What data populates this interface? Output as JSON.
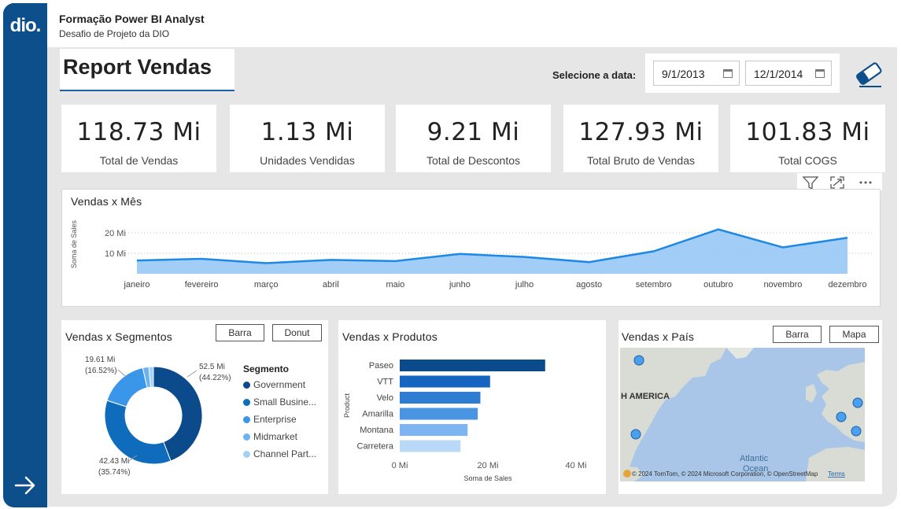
{
  "brand": {
    "logo_text": "dio."
  },
  "header": {
    "title": "Formação Power BI Analyst",
    "subtitle": "Desafio de Projeto da DIO"
  },
  "report": {
    "title": "Report Vendas"
  },
  "date_filter": {
    "label": "Selecione a data:",
    "start": "9/1/2013",
    "end": "12/1/2014"
  },
  "kpis": [
    {
      "value": "118.73 Mi",
      "label": "Total de Vendas"
    },
    {
      "value": "1.13 Mi",
      "label": "Unidades Vendidas"
    },
    {
      "value": "9.21 Mi",
      "label": "Total de Descontos"
    },
    {
      "value": "127.93 Mi",
      "label": "Total Bruto de Vendas"
    },
    {
      "value": "101.83 Mi",
      "label": "Total COGS"
    }
  ],
  "colors": {
    "rail": "#0d4f8b",
    "accent": "#1f5fa8",
    "line": "#1e88e5",
    "area": "#90c4f5"
  },
  "chart_data": [
    {
      "type": "area",
      "title": "Vendas x Mês",
      "ylabel": "Soma de Sales",
      "xlabel": "",
      "categories": [
        "janeiro",
        "fevereiro",
        "março",
        "abril",
        "maio",
        "junho",
        "julho",
        "agosto",
        "setembro",
        "outubro",
        "novembro",
        "dezembro"
      ],
      "values": [
        6.5,
        7.3,
        5.2,
        6.8,
        6.2,
        9.7,
        8.2,
        5.7,
        11.0,
        21.7,
        12.9,
        17.6
      ],
      "yticks": [
        "10 Mi",
        "20 Mi"
      ],
      "ylim": [
        0,
        25
      ]
    },
    {
      "type": "pie",
      "title": "Vendas x Segmentos",
      "legend_title": "Segmento",
      "categories": [
        "Government",
        "Small Business",
        "Enterprise",
        "Midmarket",
        "Channel Partners"
      ],
      "legend_labels": [
        "Government",
        "Small Busine...",
        "Enterprise",
        "Midmarket",
        "Channel Part..."
      ],
      "values": [
        52.5,
        42.43,
        19.61,
        2.4,
        1.79
      ],
      "data_labels": [
        {
          "value": "52.5 Mi",
          "pct": "(44.22%)"
        },
        {
          "value": "42.43 Mi",
          "pct": "(35.74%)"
        },
        {
          "value": "19.61 Mi",
          "pct": "(16.52%)"
        }
      ],
      "colors": [
        "#0b4a8b",
        "#0f6cbd",
        "#3a96e8",
        "#6cb2f0",
        "#a3d0f7"
      ]
    },
    {
      "type": "bar",
      "orientation": "horizontal",
      "title": "Vendas x Produtos",
      "ylabel": "Product",
      "xlabel": "Soma de Sales",
      "categories": [
        "Paseo",
        "VTT",
        "Velo",
        "Amarilla",
        "Montana",
        "Carretera"
      ],
      "values": [
        33.0,
        20.5,
        18.3,
        17.7,
        15.4,
        13.8
      ],
      "xticks": [
        "0 Mi",
        "20 Mi",
        "40 Mi"
      ],
      "xlim": [
        0,
        40
      ],
      "colors": [
        "#0b4a8b",
        "#1565c0",
        "#2e7dd2",
        "#4a95e2",
        "#7cb5ef",
        "#b9d9f8"
      ]
    }
  ],
  "segment_buttons": {
    "bar": "Barra",
    "donut": "Donut"
  },
  "map": {
    "title": "Vendas x País",
    "buttons": {
      "bar": "Barra",
      "map": "Mapa"
    },
    "label_continent": "H AMERICA",
    "label_ocean": "Atlantic\nOcean",
    "ocean_line1": "Atlantic",
    "ocean_line2": "Ocean",
    "attribution": "© 2024 TomTom, © 2024 Microsoft Corporation, © OpenStreetMap",
    "terms": "Terms"
  },
  "icons": [
    "filter-icon",
    "focus-mode-icon",
    "more-options-icon",
    "eraser-icon",
    "calendar-icon",
    "arrow-right-icon"
  ]
}
